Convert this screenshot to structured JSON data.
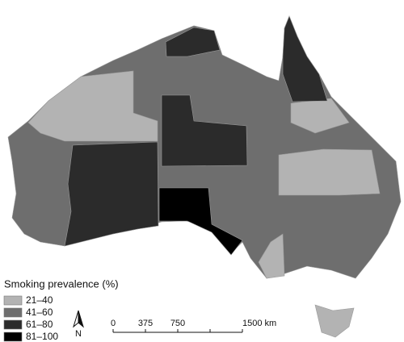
{
  "legend": {
    "title": "Smoking prevalence (%)",
    "items": [
      {
        "label": "21–40",
        "color": "#b3b3b3"
      },
      {
        "label": "41–60",
        "color": "#6e6e6e"
      },
      {
        "label": "61–80",
        "color": "#2b2b2b"
      },
      {
        "label": "81–100",
        "color": "#000000"
      }
    ]
  },
  "north_arrow": "N",
  "scale_bar": [
    "0",
    "375",
    "750",
    "1500 km"
  ]
}
